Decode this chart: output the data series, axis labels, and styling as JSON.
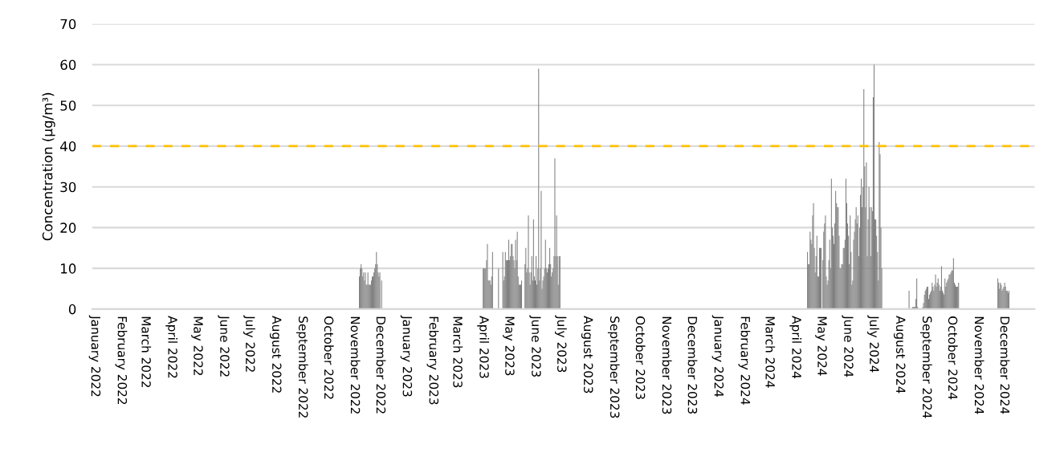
{
  "chart_data": {
    "type": "bar",
    "ylabel": "Concentration (µg/m³)",
    "color": "#808080",
    "x": [
      "2022-11-07",
      "2022-11-08",
      "2022-11-09",
      "2022-11-10",
      "2022-11-11",
      "2022-11-12",
      "2022-11-13",
      "2022-11-14",
      "2022-11-15",
      "2022-11-16",
      "2022-11-17",
      "2022-11-18",
      "2022-11-19",
      "2022-11-20",
      "2022-11-21",
      "2022-11-22",
      "2022-11-23",
      "2022-11-24",
      "2022-11-25",
      "2022-11-26",
      "2022-11-27",
      "2022-11-28",
      "2022-11-29",
      "2022-11-30",
      "2022-12-01",
      "2022-12-03",
      "2023-04-01",
      "2023-04-02",
      "2023-04-03",
      "2023-04-04",
      "2023-04-05",
      "2023-04-06",
      "2023-04-07",
      "2023-04-08",
      "2023-04-09",
      "2023-04-10",
      "2023-04-11",
      "2023-04-12",
      "2023-04-19",
      "2023-04-24",
      "2023-04-25",
      "2023-04-26",
      "2023-04-27",
      "2023-04-28",
      "2023-04-29",
      "2023-04-30",
      "2023-05-01",
      "2023-05-02",
      "2023-05-03",
      "2023-05-04",
      "2023-05-05",
      "2023-05-06",
      "2023-05-07",
      "2023-05-08",
      "2023-05-09",
      "2023-05-10",
      "2023-05-11",
      "2023-05-12",
      "2023-05-13",
      "2023-05-14",
      "2023-05-15",
      "2023-05-16",
      "2023-05-20",
      "2023-05-21",
      "2023-05-22",
      "2023-05-23",
      "2023-05-24",
      "2023-05-25",
      "2023-05-26",
      "2023-05-27",
      "2023-05-28",
      "2023-05-29",
      "2023-05-30",
      "2023-05-31",
      "2023-06-01",
      "2023-06-02",
      "2023-06-03",
      "2023-06-04",
      "2023-06-05",
      "2023-06-06",
      "2023-06-07",
      "2023-06-08",
      "2023-06-09",
      "2023-06-10",
      "2023-06-11",
      "2023-06-12",
      "2023-06-13",
      "2023-06-14",
      "2023-06-15",
      "2023-06-16",
      "2023-06-17",
      "2023-06-18",
      "2023-06-19",
      "2023-06-20",
      "2023-06-21",
      "2023-06-22",
      "2023-06-23",
      "2023-06-24",
      "2023-06-25",
      "2023-06-26",
      "2023-06-27",
      "2023-06-28",
      "2023-06-29",
      "2023-06-30",
      "2024-04-15",
      "2024-04-16",
      "2024-04-17",
      "2024-04-18",
      "2024-04-19",
      "2024-04-20",
      "2024-04-21",
      "2024-04-22",
      "2024-04-23",
      "2024-04-24",
      "2024-04-25",
      "2024-04-26",
      "2024-04-27",
      "2024-04-28",
      "2024-04-29",
      "2024-04-30",
      "2024-05-01",
      "2024-05-03",
      "2024-05-04",
      "2024-05-05",
      "2024-05-06",
      "2024-05-07",
      "2024-05-08",
      "2024-05-09",
      "2024-05-10",
      "2024-05-11",
      "2024-05-12",
      "2024-05-13",
      "2024-05-14",
      "2024-05-15",
      "2024-05-16",
      "2024-05-17",
      "2024-05-18",
      "2024-05-19",
      "2024-05-20",
      "2024-05-21",
      "2024-05-22",
      "2024-05-23",
      "2024-05-24",
      "2024-05-25",
      "2024-05-26",
      "2024-05-27",
      "2024-05-28",
      "2024-05-29",
      "2024-05-30",
      "2024-05-31",
      "2024-06-01",
      "2024-06-02",
      "2024-06-03",
      "2024-06-04",
      "2024-06-05",
      "2024-06-06",
      "2024-06-07",
      "2024-06-08",
      "2024-06-09",
      "2024-06-10",
      "2024-06-11",
      "2024-06-12",
      "2024-06-13",
      "2024-06-14",
      "2024-06-15",
      "2024-06-16",
      "2024-06-17",
      "2024-06-18",
      "2024-06-19",
      "2024-06-20",
      "2024-06-21",
      "2024-06-22",
      "2024-06-23",
      "2024-06-24",
      "2024-06-25",
      "2024-06-26",
      "2024-06-27",
      "2024-06-28",
      "2024-06-29",
      "2024-06-30",
      "2024-07-01",
      "2024-07-02",
      "2024-07-03",
      "2024-07-04",
      "2024-07-05",
      "2024-07-06",
      "2024-07-07",
      "2024-07-08",
      "2024-07-09",
      "2024-07-10",
      "2024-07-11",
      "2024-08-12",
      "2024-08-16",
      "2024-08-17",
      "2024-08-18",
      "2024-08-19",
      "2024-08-20",
      "2024-08-21",
      "2024-08-22",
      "2024-08-28",
      "2024-08-29",
      "2024-08-30",
      "2024-08-31",
      "2024-09-01",
      "2024-09-02",
      "2024-09-03",
      "2024-09-04",
      "2024-09-05",
      "2024-09-06",
      "2024-09-07",
      "2024-09-08",
      "2024-09-09",
      "2024-09-10",
      "2024-09-11",
      "2024-09-12",
      "2024-09-13",
      "2024-09-14",
      "2024-09-15",
      "2024-09-16",
      "2024-09-17",
      "2024-09-18",
      "2024-09-19",
      "2024-09-20",
      "2024-09-21",
      "2024-09-22",
      "2024-09-23",
      "2024-09-24",
      "2024-09-25",
      "2024-09-26",
      "2024-09-27",
      "2024-09-28",
      "2024-09-29",
      "2024-09-30",
      "2024-10-01",
      "2024-10-02",
      "2024-10-03",
      "2024-10-04",
      "2024-10-05",
      "2024-10-06",
      "2024-10-07",
      "2024-10-08",
      "2024-10-09",
      "2024-11-24",
      "2024-11-25",
      "2024-11-26",
      "2024-11-27",
      "2024-11-28",
      "2024-11-29",
      "2024-11-30",
      "2024-12-01",
      "2024-12-02",
      "2024-12-03",
      "2024-12-04",
      "2024-12-05",
      "2024-12-06",
      "2024-12-07"
    ],
    "values": [
      8,
      10,
      11,
      10,
      8,
      9,
      7,
      9,
      6,
      6,
      9,
      6,
      6,
      6,
      7,
      8,
      8,
      9,
      10,
      11,
      14,
      11,
      9,
      8,
      9,
      7,
      10,
      10,
      10,
      10,
      12,
      16,
      7,
      7,
      7,
      6,
      8,
      14,
      10,
      14,
      7,
      8,
      14,
      12,
      12,
      12,
      17,
      12,
      13,
      16,
      16,
      13,
      12,
      10,
      17,
      12,
      19,
      8,
      6,
      6,
      6,
      7,
      11,
      15,
      9,
      10,
      23,
      9,
      6,
      9,
      13,
      7,
      22,
      8,
      7,
      13,
      6,
      10,
      59,
      7,
      10,
      29,
      5,
      7,
      8,
      10,
      17,
      10,
      9,
      10,
      11,
      15,
      11,
      8,
      9,
      10,
      13,
      37,
      13,
      23,
      13,
      6,
      13,
      13,
      14,
      11,
      11,
      19,
      17,
      16,
      23,
      26,
      15,
      9,
      13,
      18,
      8,
      8,
      15,
      15,
      15,
      12,
      19,
      21,
      23,
      8,
      6,
      7,
      12,
      17,
      10,
      32,
      20,
      18,
      16,
      21,
      29,
      26,
      25,
      25,
      18,
      10,
      10,
      11,
      11,
      15,
      15,
      17,
      32,
      26,
      21,
      18,
      11,
      23,
      14,
      6,
      7,
      17,
      19,
      22,
      25,
      21,
      23,
      13,
      20,
      28,
      32,
      25,
      30,
      54,
      35,
      25,
      36,
      13,
      22,
      30,
      25,
      13,
      25,
      24,
      52,
      60,
      22,
      22,
      18,
      14,
      7,
      41,
      38,
      20,
      10,
      4.5,
      0.5,
      0.5,
      0.5,
      0.5,
      2.5,
      7.5,
      0.5,
      0.5,
      1.5,
      3.5,
      4.5,
      5,
      5.5,
      5.5,
      2.5,
      3.5,
      4,
      4.5,
      6.5,
      5.5,
      4.5,
      6,
      8.5,
      5.5,
      6.5,
      7.5,
      6,
      4.5,
      5.5,
      10.5,
      4.5,
      4,
      3.5,
      7.5,
      5.5,
      6.5,
      7,
      7.5,
      8.5,
      8.5,
      9,
      9.5,
      9.5,
      12.5,
      6.5,
      6,
      5.5,
      5.5,
      5.5,
      6.5,
      7.5,
      6.5,
      5,
      6.5,
      6,
      4.5,
      5,
      5.5,
      6.5,
      5.5,
      4.5,
      4.5,
      4,
      4.5
    ],
    "xlim": [
      "2021-12-29",
      "2025-01-06"
    ],
    "xticks": [
      {
        "value": "2022-01-01",
        "label": "January 2022"
      },
      {
        "value": "2022-02-01",
        "label": "February 2022"
      },
      {
        "value": "2022-03-01",
        "label": "March 2022"
      },
      {
        "value": "2022-04-01",
        "label": "April 2022"
      },
      {
        "value": "2022-05-01",
        "label": "May 2022"
      },
      {
        "value": "2022-06-01",
        "label": "June 2022"
      },
      {
        "value": "2022-07-01",
        "label": "July 2022"
      },
      {
        "value": "2022-08-01",
        "label": "August 2022"
      },
      {
        "value": "2022-09-01",
        "label": "September 2022"
      },
      {
        "value": "2022-10-01",
        "label": "October 2022"
      },
      {
        "value": "2022-11-01",
        "label": "November 2022"
      },
      {
        "value": "2022-12-01",
        "label": "December 2022"
      },
      {
        "value": "2023-01-01",
        "label": "January 2023"
      },
      {
        "value": "2023-02-01",
        "label": "February 2023"
      },
      {
        "value": "2023-03-01",
        "label": "March 2023"
      },
      {
        "value": "2023-04-01",
        "label": "April 2023"
      },
      {
        "value": "2023-05-01",
        "label": "May 2023"
      },
      {
        "value": "2023-06-01",
        "label": "June 2023"
      },
      {
        "value": "2023-07-01",
        "label": "July 2023"
      },
      {
        "value": "2023-08-01",
        "label": "August 2023"
      },
      {
        "value": "2023-09-01",
        "label": "September 2023"
      },
      {
        "value": "2023-10-01",
        "label": "October 2023"
      },
      {
        "value": "2023-11-01",
        "label": "November 2023"
      },
      {
        "value": "2023-12-01",
        "label": "December 2023"
      },
      {
        "value": "2024-01-01",
        "label": "January 2024"
      },
      {
        "value": "2024-02-01",
        "label": "February 2024"
      },
      {
        "value": "2024-03-01",
        "label": "March 2024"
      },
      {
        "value": "2024-04-01",
        "label": "April 2024"
      },
      {
        "value": "2024-05-01",
        "label": "May 2024"
      },
      {
        "value": "2024-06-01",
        "label": "June 2024"
      },
      {
        "value": "2024-07-01",
        "label": "July 2024"
      },
      {
        "value": "2024-08-01",
        "label": "August 2024"
      },
      {
        "value": "2024-09-01",
        "label": "September 2024"
      },
      {
        "value": "2024-10-01",
        "label": "October 2024"
      },
      {
        "value": "2024-11-01",
        "label": "November 2024"
      },
      {
        "value": "2024-12-01",
        "label": "December 2024"
      }
    ],
    "ylim": [
      0,
      70
    ],
    "yticks": [
      0,
      10,
      20,
      30,
      40,
      50,
      60,
      70
    ],
    "grid": "y",
    "ref_lines": [
      {
        "axis": "y",
        "value": 40,
        "color": "#ffc000",
        "line_style": "dashed"
      }
    ]
  }
}
